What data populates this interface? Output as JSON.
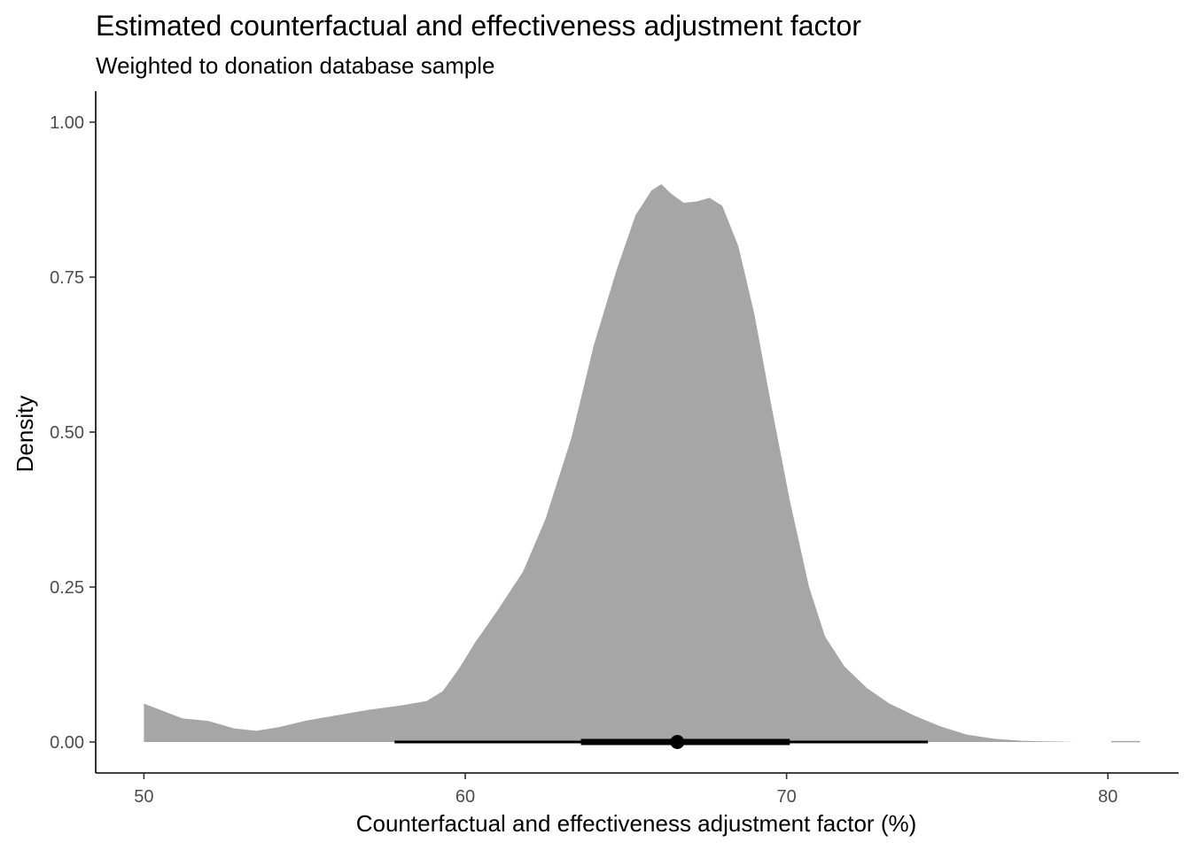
{
  "chart_data": {
    "type": "area",
    "title": "Estimated counterfactual and effectiveness adjustment factor",
    "subtitle": "Weighted to donation database sample",
    "xlabel": "Counterfactual and effectiveness adjustment factor (%)",
    "ylabel": "Density",
    "xlim": [
      48.5,
      82.2
    ],
    "ylim": [
      -0.05,
      1.05
    ],
    "x_ticks": [
      50,
      60,
      70,
      80
    ],
    "x_tick_labels": [
      "50",
      "60",
      "70",
      "80"
    ],
    "y_ticks": [
      0.0,
      0.25,
      0.5,
      0.75,
      1.0
    ],
    "y_tick_labels": [
      "0.00",
      "0.25",
      "0.50",
      "0.75",
      "1.00"
    ],
    "grid": false,
    "fill_color": "#a6a6a6",
    "density": {
      "x": [
        50.0,
        50.5,
        51.2,
        52.0,
        52.8,
        53.5,
        54.2,
        55.0,
        56.0,
        57.0,
        58.0,
        58.8,
        59.3,
        59.8,
        60.3,
        61.0,
        61.8,
        62.5,
        63.3,
        64.0,
        64.7,
        65.3,
        65.8,
        66.1,
        66.4,
        66.8,
        67.2,
        67.6,
        68.0,
        68.5,
        69.0,
        69.5,
        70.1,
        70.7,
        71.2,
        71.8,
        72.5,
        73.2,
        74.0,
        74.8,
        75.6,
        76.5,
        77.3,
        78.0,
        78.6,
        79.0
      ],
      "y": [
        0.062,
        0.052,
        0.038,
        0.034,
        0.022,
        0.018,
        0.024,
        0.034,
        0.043,
        0.052,
        0.059,
        0.066,
        0.082,
        0.118,
        0.16,
        0.212,
        0.275,
        0.36,
        0.49,
        0.64,
        0.76,
        0.85,
        0.89,
        0.9,
        0.885,
        0.87,
        0.872,
        0.878,
        0.865,
        0.8,
        0.69,
        0.55,
        0.39,
        0.25,
        0.17,
        0.122,
        0.087,
        0.062,
        0.042,
        0.025,
        0.012,
        0.005,
        0.002,
        0.001,
        0.0005,
        0.0
      ]
    },
    "density_tail": {
      "x": [
        80.1,
        81.0
      ],
      "y": [
        0.0005,
        0.0005
      ]
    },
    "point_estimate": 66.6,
    "interval_inner": [
      63.6,
      70.1
    ],
    "interval_outer": [
      57.8,
      74.4
    ],
    "interval_y": 0.0
  }
}
